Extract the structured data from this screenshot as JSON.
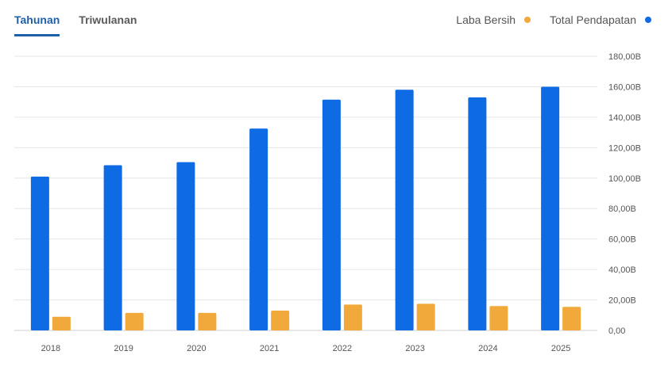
{
  "tabs": [
    {
      "label": "Tahunan",
      "active": true
    },
    {
      "label": "Triwulanan",
      "active": false
    }
  ],
  "legend": [
    {
      "label": "Laba Bersih",
      "color": "#f2a93b"
    },
    {
      "label": "Total Pendapatan",
      "color": "#0f6be4"
    }
  ],
  "chart_data": {
    "type": "bar",
    "categories": [
      "2018",
      "2019",
      "2020",
      "2021",
      "2022",
      "2023",
      "2024",
      "2025"
    ],
    "series": [
      {
        "name": "Total Pendapatan",
        "color": "#0f6be4",
        "values": [
          101,
          108.5,
          110.5,
          132.5,
          151.5,
          158,
          153,
          160
        ]
      },
      {
        "name": "Laba Bersih",
        "color": "#f2a93b",
        "values": [
          9,
          11.5,
          11.5,
          13,
          17,
          17.5,
          16,
          15.5
        ]
      }
    ],
    "ylim": [
      0,
      180
    ],
    "yticks": [
      "0,00",
      "20,00B",
      "40,00B",
      "60,00B",
      "80,00B",
      "100,00B",
      "120,00B",
      "140,00B",
      "160,00B",
      "180,00B"
    ],
    "y_axis_position": "right",
    "grid": true,
    "legend_position": "top-right"
  }
}
